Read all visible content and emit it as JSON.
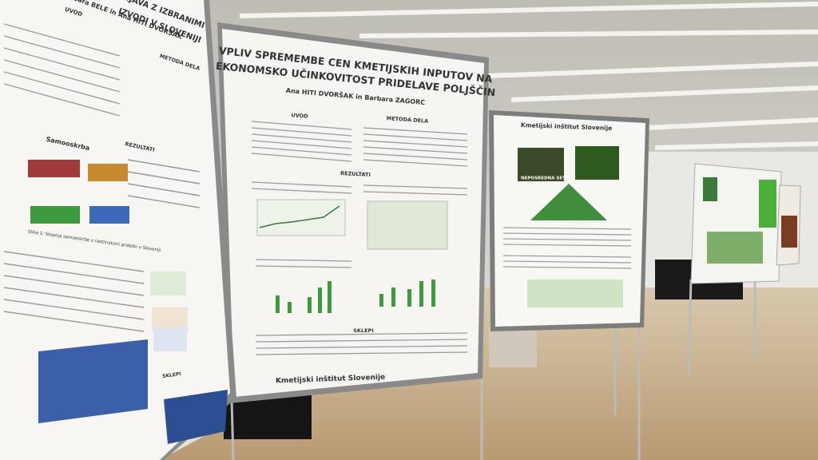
{
  "left_poster": {
    "title": "NJAVA Z IZBRANIMI",
    "subtitle": "IZVODI V SLOVENIJI",
    "authors": "Sara BELE in Ana HITI DVORŠAK",
    "headings": [
      "UVOD",
      "METODA DELA",
      "Samooskrba",
      "REZULTATI",
      "SKLEPI"
    ],
    "caption": "Slika 1: Stopnja samooskrbe z rastlinskimi pridelki v Sloveniji"
  },
  "center_poster": {
    "title_lines": [
      "VPLIV SPREMEMBE CEN KMETIJSKIH INPUTOV NA",
      "EKONOMSKO UČINKOVITOST PRIDELAVE POLJŠČIN"
    ],
    "authors": "Ana HITI DVORŠAK in Barbara ZAGORC",
    "headings": [
      "UVOD",
      "METODA DELA",
      "REZULTATI",
      "SKLEPI"
    ],
    "logo": "Kmetijski inštitut Slovenije"
  },
  "right_poster": {
    "logo": "Kmetijski inštitut Slovenije",
    "photo_label": "NEPOSREDNA SETEV"
  }
}
